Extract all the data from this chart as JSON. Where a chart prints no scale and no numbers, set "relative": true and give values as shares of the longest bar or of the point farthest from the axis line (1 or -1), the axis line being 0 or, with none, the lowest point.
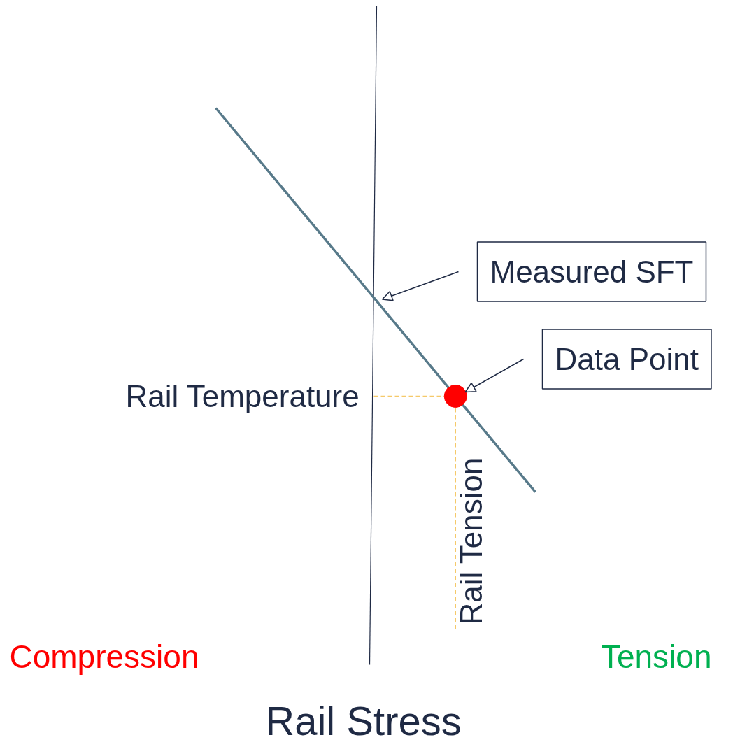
{
  "chart_data": {
    "type": "line",
    "relative": true,
    "xlabel": "Rail Stress",
    "categories": [
      null,
      null,
      null,
      null,
      null
    ],
    "series": [
      {
        "color": "#587a8a",
        "values": [
          1.0,
          0.816,
          0.632,
          0.447,
          0.263
        ]
      }
    ],
    "ref_lines": [
      {
        "axis": "y",
        "value": 0.447,
        "label": "Rail Temperature",
        "color": "#f5c96a",
        "line_style": "dashed"
      }
    ],
    "annotations": [
      "Measured SFT",
      "Data Point",
      "Rail Tension",
      "Compression",
      "Tension"
    ]
  }
}
